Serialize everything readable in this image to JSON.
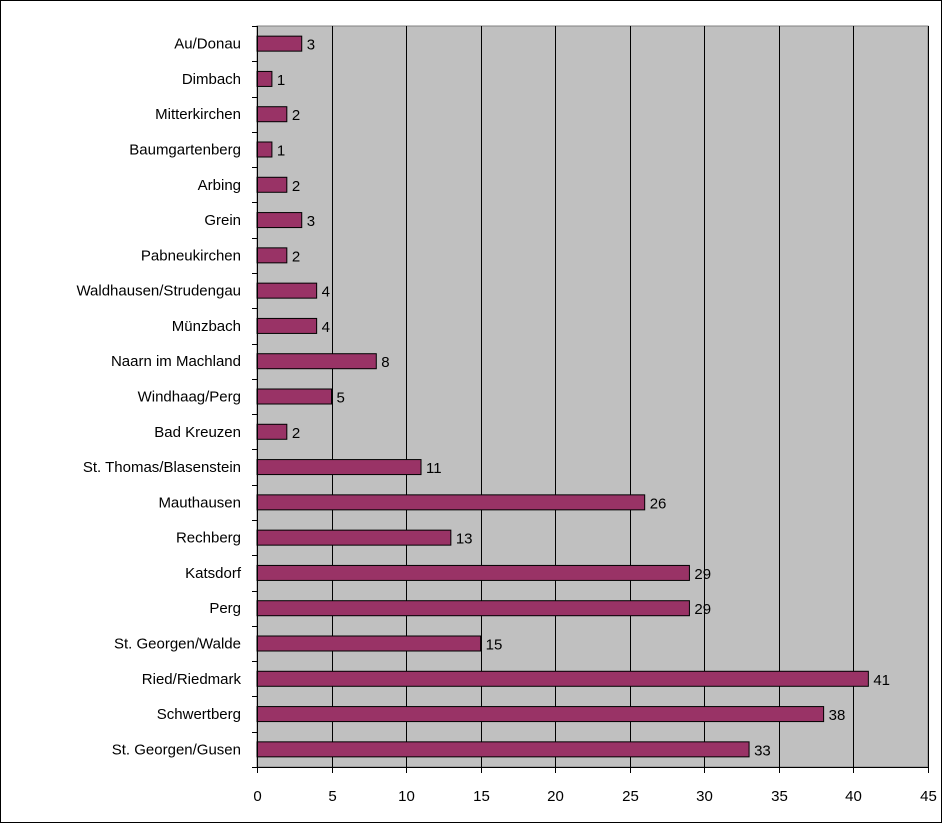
{
  "chart_data": {
    "type": "bar",
    "orientation": "horizontal",
    "categories": [
      "Au/Donau",
      "Dimbach",
      "Mitterkirchen",
      "Baumgartenberg",
      "Arbing",
      "Grein",
      "Pabneukirchen",
      "Waldhausen/Strudengau",
      "Münzbach",
      "Naarn im Machland",
      "Windhaag/Perg",
      "Bad Kreuzen",
      "St. Thomas/Blasenstein",
      "Mauthausen",
      "Rechberg",
      "Katsdorf",
      "Perg",
      "St. Georgen/Walde",
      "Ried/Riedmark",
      "Schwertberg",
      "St. Georgen/Gusen"
    ],
    "values": [
      3,
      1,
      2,
      1,
      2,
      3,
      2,
      4,
      4,
      8,
      5,
      2,
      11,
      26,
      13,
      29,
      29,
      15,
      41,
      38,
      33
    ],
    "xlim": [
      0,
      45
    ],
    "xticks": [
      0,
      5,
      10,
      15,
      20,
      25,
      30,
      35,
      40,
      45
    ],
    "grid": "vertical",
    "data_labels": true,
    "legend": "none",
    "colors": {
      "bar_fill": "#993366",
      "bar_stroke": "#000000",
      "plot_background": "#c0c0c0",
      "gridline": "#000000"
    }
  }
}
